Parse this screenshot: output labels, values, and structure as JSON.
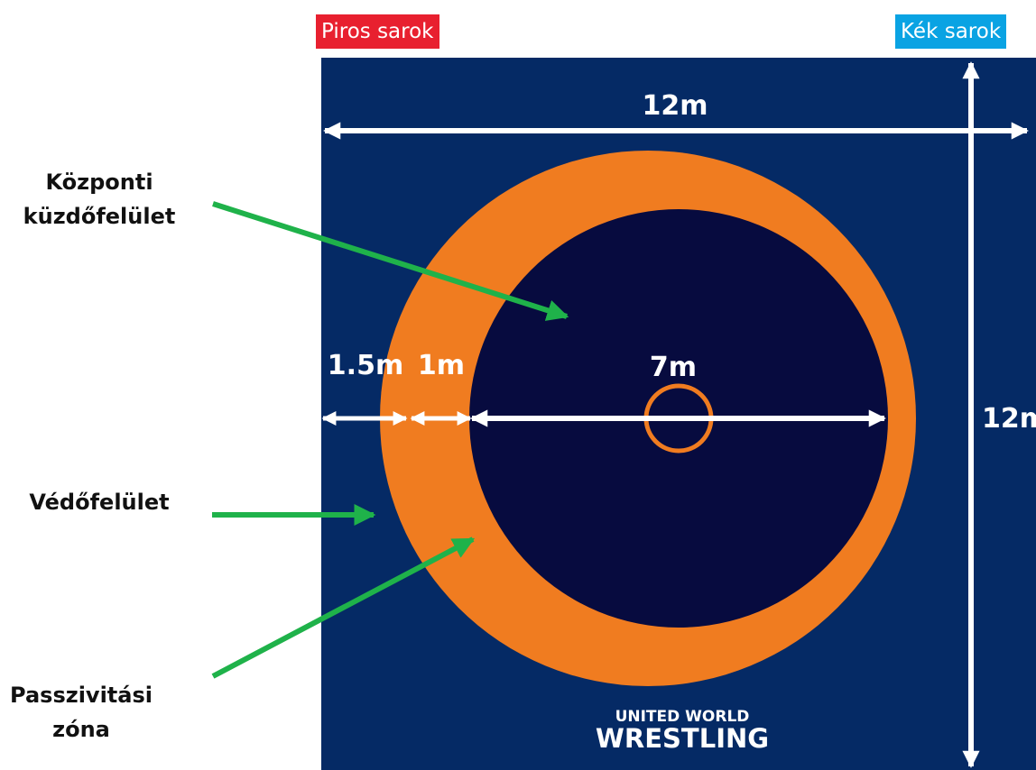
{
  "colors": {
    "mat_background": "#052a65",
    "passivity_zone": "#f07c20",
    "central_area": "#070b3f",
    "arrow_green": "#1fb24a",
    "red_corner": "#e8202f",
    "blue_corner": "#0aa3e3",
    "dimension_white": "#ffffff"
  },
  "corners": {
    "red": "Piros sarok",
    "blue": "Kék sarok"
  },
  "labels": {
    "central_line1": "Központi",
    "central_line2": "küzdőfelület",
    "protection": "Védőfelület",
    "passivity_line1": "Passzivitási",
    "passivity_line2": "zóna"
  },
  "dimensions": {
    "top_width": "12m",
    "side_height": "12m",
    "protection_width": "1.5m",
    "passivity_width": "1m",
    "central_diameter": "7m"
  },
  "logo": {
    "line1": "UNITED WORLD",
    "line2": "WRESTLING"
  }
}
